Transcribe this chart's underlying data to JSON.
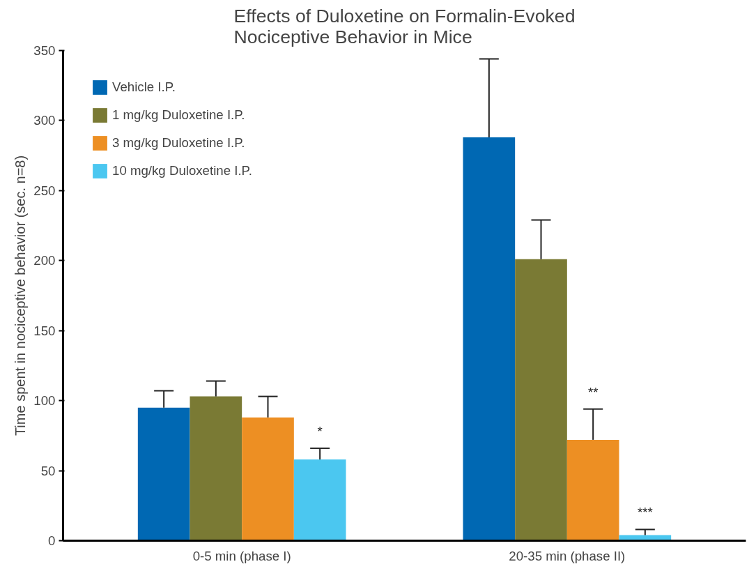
{
  "chart_data": {
    "type": "bar",
    "title": "Effects of Duloxetine on Formalin-Evoked\nNociceptive Behavior in Mice",
    "ylabel": "Time spent in nociceptive behavior (sec. n=8)",
    "categories": [
      "0-5 min (phase I)",
      "20-35 min (phase II)"
    ],
    "series": [
      {
        "name": "Vehicle I.P.",
        "color": "#0068b3",
        "values": [
          95,
          288
        ],
        "errors": [
          [
            95,
            107
          ],
          [
            288,
            344
          ]
        ]
      },
      {
        "name": "1 mg/kg Duloxetine I.P.",
        "color": "#7a7a34",
        "values": [
          103,
          201
        ],
        "errors": [
          [
            103,
            114
          ],
          [
            201,
            229
          ]
        ]
      },
      {
        "name": "3 mg/kg Duloxetine I.P.",
        "color": "#ed8f23",
        "values": [
          88,
          72
        ],
        "errors": [
          [
            88,
            103
          ],
          [
            72,
            94
          ]
        ],
        "value_labels": [
          null,
          "**"
        ]
      },
      {
        "name": "10 mg/kg Duloxetine I.P.",
        "color": "#4bc7f0",
        "values": [
          58,
          4
        ],
        "errors": [
          [
            58,
            66
          ],
          [
            4,
            8
          ]
        ],
        "value_labels": [
          "*",
          "***"
        ]
      }
    ],
    "ylim": [
      0,
      350
    ],
    "yticks": [
      0,
      50,
      100,
      150,
      200,
      250,
      300,
      350
    ],
    "grid": false,
    "legend": "top left"
  }
}
